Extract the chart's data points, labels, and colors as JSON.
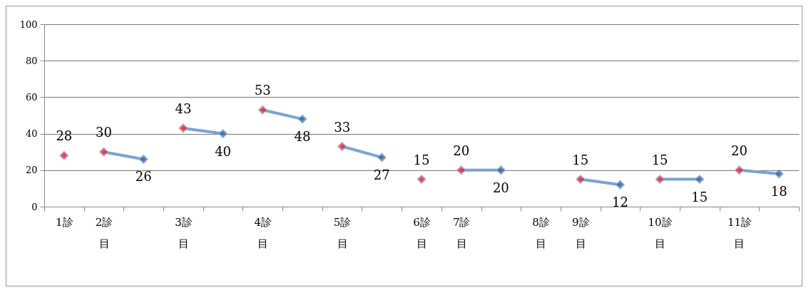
{
  "chart_data": {
    "type": "line",
    "categories": [
      "1診",
      "2診目",
      null,
      "3診目",
      null,
      "4診目",
      null,
      "5診目",
      null,
      "6診目",
      "7診目",
      null,
      "8診目",
      "9診目",
      null,
      "10診目",
      null,
      "11診目",
      null
    ],
    "series": [
      {
        "color": "#7ba3d4",
        "colors": [
          "#e41e2b",
          null,
          null,
          null,
          null,
          null,
          null,
          null,
          null,
          null,
          null,
          null,
          null,
          null,
          null,
          null,
          null,
          null,
          null
        ],
        "values": [
          28,
          null,
          null,
          null,
          null,
          null,
          null,
          null,
          null,
          null,
          null,
          null,
          null,
          null,
          null,
          null,
          null,
          null,
          null
        ]
      },
      {
        "color": "#7ba3d4",
        "colors": [
          null,
          "#e41e2b",
          "#2e5f94",
          null,
          null,
          null,
          null,
          null,
          null,
          null,
          null,
          null,
          null,
          null,
          null,
          null,
          null,
          null,
          null
        ],
        "values": [
          null,
          30,
          26,
          null,
          null,
          null,
          null,
          null,
          null,
          null,
          null,
          null,
          null,
          null,
          null,
          null,
          null,
          null,
          null
        ]
      },
      {
        "color": "#7ba3d4",
        "colors": [
          null,
          null,
          null,
          "#e41e2b",
          "#2e5f94",
          null,
          null,
          null,
          null,
          null,
          null,
          null,
          null,
          null,
          null,
          null,
          null,
          null,
          null
        ],
        "values": [
          null,
          null,
          null,
          43,
          40,
          null,
          null,
          null,
          null,
          null,
          null,
          null,
          null,
          null,
          null,
          null,
          null,
          null,
          null
        ]
      },
      {
        "color": "#7ba3d4",
        "colors": [
          null,
          null,
          null,
          null,
          null,
          "#e41e2b",
          "#2e5f94",
          null,
          null,
          null,
          null,
          null,
          null,
          null,
          null,
          null,
          null,
          null,
          null
        ],
        "values": [
          null,
          null,
          null,
          null,
          null,
          53,
          48,
          null,
          null,
          null,
          null,
          null,
          null,
          null,
          null,
          null,
          null,
          null,
          null
        ]
      },
      {
        "color": "#7ba3d4",
        "colors": [
          null,
          null,
          null,
          null,
          null,
          null,
          null,
          "#e41e2b",
          "#2e5f94",
          null,
          null,
          null,
          null,
          null,
          null,
          null,
          null,
          null,
          null
        ],
        "values": [
          null,
          null,
          null,
          null,
          null,
          null,
          null,
          33,
          27,
          null,
          null,
          null,
          null,
          null,
          null,
          null,
          null,
          null,
          null
        ]
      },
      {
        "color": "#7ba3d4",
        "colors": [
          null,
          null,
          null,
          null,
          null,
          null,
          null,
          null,
          null,
          "#e41e2b",
          null,
          null,
          null,
          null,
          null,
          null,
          null,
          null,
          null
        ],
        "values": [
          null,
          null,
          null,
          null,
          null,
          null,
          null,
          null,
          null,
          15,
          null,
          null,
          null,
          null,
          null,
          null,
          null,
          null,
          null
        ]
      },
      {
        "color": "#7ba3d4",
        "colors": [
          null,
          null,
          null,
          null,
          null,
          null,
          null,
          null,
          null,
          null,
          "#e41e2b",
          "#2e5f94",
          null,
          null,
          null,
          null,
          null,
          null,
          null
        ],
        "values": [
          null,
          null,
          null,
          null,
          null,
          null,
          null,
          null,
          null,
          null,
          20,
          20,
          null,
          null,
          null,
          null,
          null,
          null,
          null
        ]
      },
      {
        "color": "#7ba3d4",
        "colors": [
          null,
          null,
          null,
          null,
          null,
          null,
          null,
          null,
          null,
          null,
          null,
          null,
          null,
          "#e41e2b",
          "#2e5f94",
          null,
          null,
          null,
          null
        ],
        "values": [
          null,
          null,
          null,
          null,
          null,
          null,
          null,
          null,
          null,
          null,
          null,
          null,
          null,
          15,
          12,
          null,
          null,
          null,
          null
        ]
      },
      {
        "color": "#7ba3d4",
        "colors": [
          null,
          null,
          null,
          null,
          null,
          null,
          null,
          null,
          null,
          null,
          null,
          null,
          null,
          null,
          null,
          "#e41e2b",
          "#2e5f94",
          null,
          null
        ],
        "values": [
          null,
          null,
          null,
          null,
          null,
          null,
          null,
          null,
          null,
          null,
          null,
          null,
          null,
          null,
          null,
          15,
          15,
          null,
          null
        ]
      },
      {
        "color": "#7ba3d4",
        "colors": [
          null,
          null,
          null,
          null,
          null,
          null,
          null,
          null,
          null,
          null,
          null,
          null,
          null,
          null,
          null,
          null,
          null,
          "#e41e2b",
          "#2e5f94"
        ],
        "values": [
          null,
          null,
          null,
          null,
          null,
          null,
          null,
          null,
          null,
          null,
          null,
          null,
          null,
          null,
          null,
          null,
          null,
          20,
          18
        ]
      }
    ],
    "ylim": [
      0,
      100
    ],
    "yticks": [
      0,
      20,
      40,
      60,
      80,
      100
    ],
    "grid": "y",
    "marker": "diamond",
    "data_labels": true
  }
}
